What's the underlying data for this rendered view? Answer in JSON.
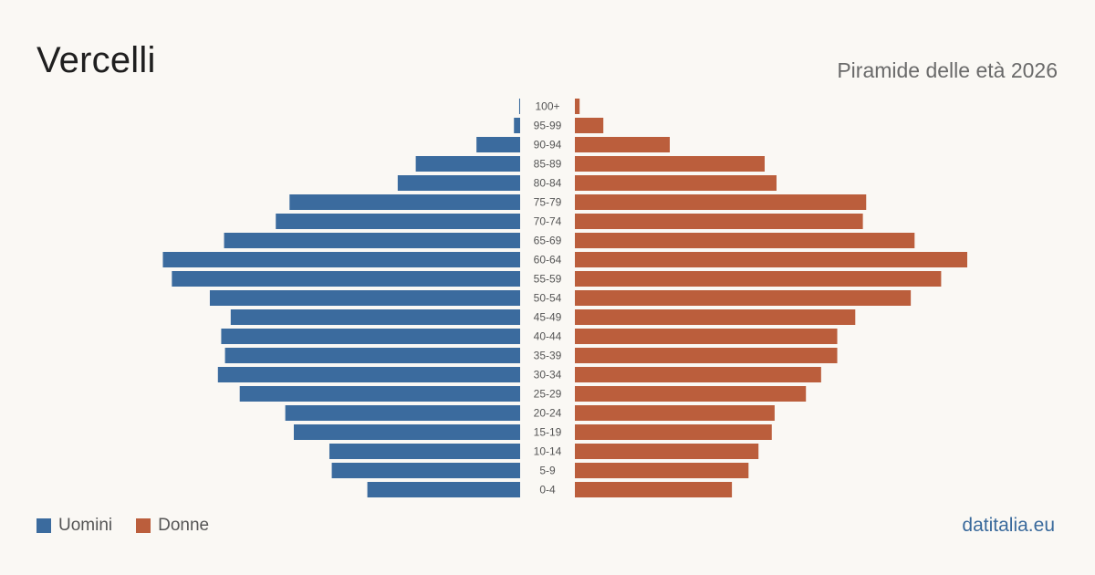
{
  "title": "Vercelli",
  "subtitle": "Piramide delle età 2026",
  "source": "datitalia.eu",
  "colors": {
    "men": "#3b6b9e",
    "women": "#bb5e3c",
    "label": "#555555"
  },
  "chart_data": {
    "type": "bar",
    "orientation": "horizontal-pyramid",
    "categories": [
      "100+",
      "95-99",
      "90-94",
      "85-89",
      "80-84",
      "75-79",
      "70-74",
      "65-69",
      "60-64",
      "55-59",
      "50-54",
      "45-49",
      "40-44",
      "35-39",
      "30-34",
      "25-29",
      "20-24",
      "15-19",
      "10-14",
      "5-9",
      "0-4"
    ],
    "series": [
      {
        "name": "Uomini",
        "values": [
          2,
          13,
          92,
          220,
          258,
          486,
          515,
          624,
          753,
          734,
          654,
          610,
          630,
          622,
          637,
          591,
          495,
          477,
          402,
          397,
          322
        ]
      },
      {
        "name": "Donne",
        "values": [
          10,
          60,
          200,
          400,
          425,
          614,
          607,
          716,
          827,
          772,
          708,
          591,
          553,
          553,
          519,
          487,
          421,
          415,
          387,
          366,
          331
        ]
      }
    ],
    "grid": false,
    "legend_position": "bottom-left"
  }
}
